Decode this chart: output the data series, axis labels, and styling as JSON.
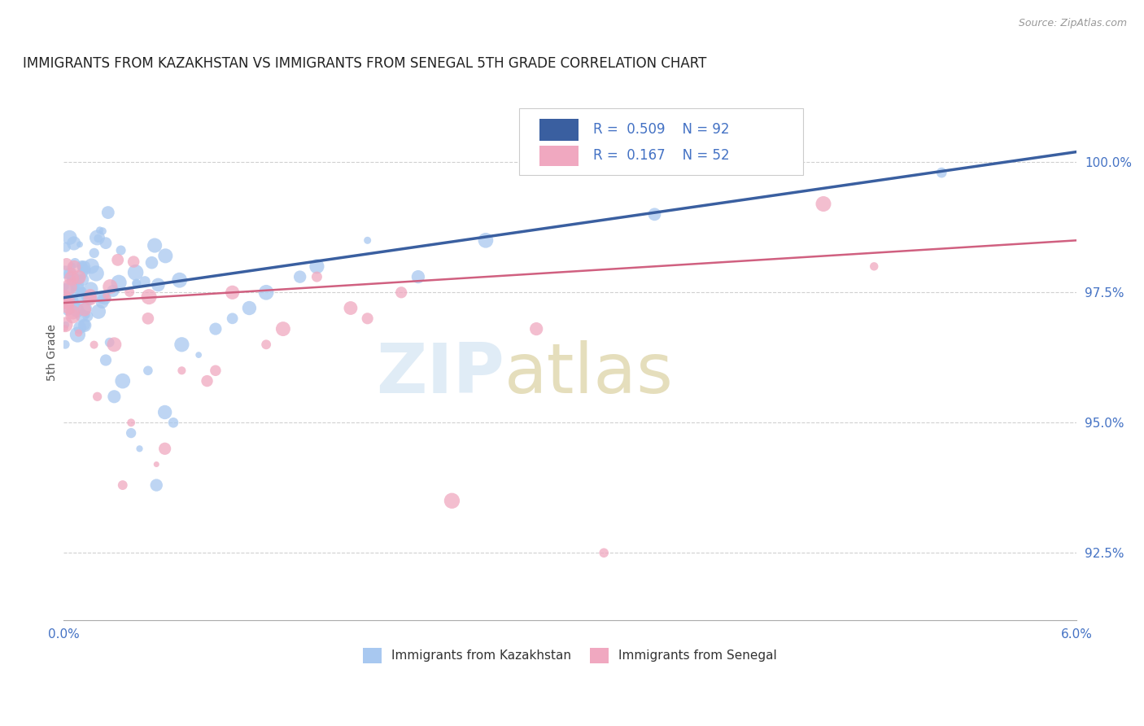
{
  "title": "IMMIGRANTS FROM KAZAKHSTAN VS IMMIGRANTS FROM SENEGAL 5TH GRADE CORRELATION CHART",
  "source": "Source: ZipAtlas.com",
  "ylabel": "5th Grade",
  "yticks": [
    92.5,
    95.0,
    97.5,
    100.0
  ],
  "ytick_labels": [
    "92.5%",
    "95.0%",
    "97.5%",
    "100.0%"
  ],
  "xlim": [
    0.0,
    6.0
  ],
  "ylim": [
    91.2,
    101.5
  ],
  "legend_kaz": "Immigrants from Kazakhstan",
  "legend_sen": "Immigrants from Senegal",
  "R_kaz": 0.509,
  "N_kaz": 92,
  "R_sen": 0.167,
  "N_sen": 52,
  "color_kaz": "#a8c8f0",
  "color_kaz_line": "#3a5fa0",
  "color_sen": "#f0a8c0",
  "color_sen_line": "#d06080",
  "color_label": "#4472c4",
  "kaz_trend_x0": 0.0,
  "kaz_trend_y0": 97.4,
  "kaz_trend_x1": 6.0,
  "kaz_trend_y1": 100.2,
  "sen_trend_x0": 0.0,
  "sen_trend_y0": 97.3,
  "sen_trend_x1": 6.0,
  "sen_trend_y1": 98.5
}
